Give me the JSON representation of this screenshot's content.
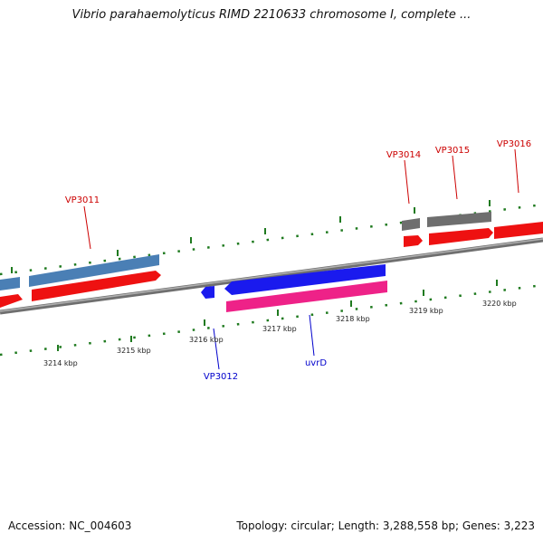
{
  "title": "Vibrio parahaemolyticus RIMD 2210633 chromosome I, complete ...",
  "footer": {
    "accession": "Accession: NC_004603",
    "summary": "Topology: circular; Length: 3,288,558 bp; Genes: 3,223"
  },
  "colors": {
    "backbone": "#8a8a8a",
    "tick": "#1f7a1f",
    "gene_red": "#ee1111",
    "gene_steel": "#4a7fb5",
    "gene_gray": "#6e6e6e",
    "gene_blue": "#1a1aee",
    "gene_pink": "#ee2288",
    "label_red": "#cc0000",
    "label_blue": "#0000cc"
  },
  "scale_labels": [
    {
      "text": "3214 kbp"
    },
    {
      "text": "3215 kbp"
    },
    {
      "text": "3216 kbp"
    },
    {
      "text": "3217 kbp"
    },
    {
      "text": "3218 kbp"
    },
    {
      "text": "3219 kbp"
    },
    {
      "text": "3220 kbp"
    }
  ],
  "gene_labels": [
    {
      "text": "VP3011"
    },
    {
      "text": "VP3012"
    },
    {
      "text": "uvrD"
    },
    {
      "text": "VP3014"
    },
    {
      "text": "VP3015"
    },
    {
      "text": "VP3016"
    }
  ]
}
